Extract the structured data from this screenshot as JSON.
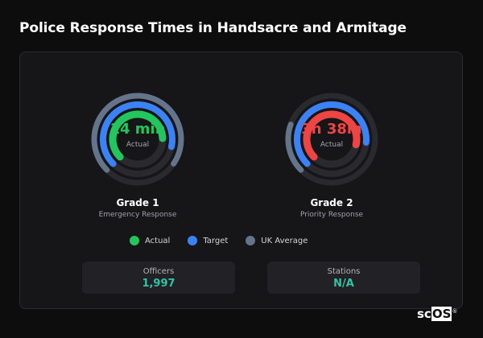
{
  "page": {
    "title": "Police Response Times in Handsacre and Armitage"
  },
  "gauges": [
    {
      "value": "14 min",
      "sub": "Actual",
      "title": "Grade 1",
      "subtitle": "Emergency Response",
      "value_color": "#22c55e",
      "actual_fraction": 0.62,
      "target_fraction": 0.66,
      "average_fraction": 0.72
    },
    {
      "value": "3h 38m",
      "sub": "Actual",
      "title": "Grade 2",
      "subtitle": "Priority Response",
      "value_color": "#ef4444",
      "actual_fraction": 0.66,
      "target_fraction": 0.64,
      "average_fraction": 0.18
    }
  ],
  "legend": [
    {
      "label": "Actual",
      "color": "#22c55e"
    },
    {
      "label": "Target",
      "color": "#3b82f6"
    },
    {
      "label": "UK Average",
      "color": "#64748b"
    }
  ],
  "stats": [
    {
      "label": "Officers",
      "value": "1,997"
    },
    {
      "label": "Stations",
      "value": "N/A"
    }
  ],
  "colors": {
    "accent_teal": "#2ec4a6",
    "track": "#2a2a2e",
    "actual_bad": "#ef4444",
    "actual_good": "#22c55e",
    "target": "#3b82f6",
    "average": "#64748b"
  },
  "brand": {
    "prefix": "sc",
    "boxed": "OS",
    "mark": "®"
  }
}
